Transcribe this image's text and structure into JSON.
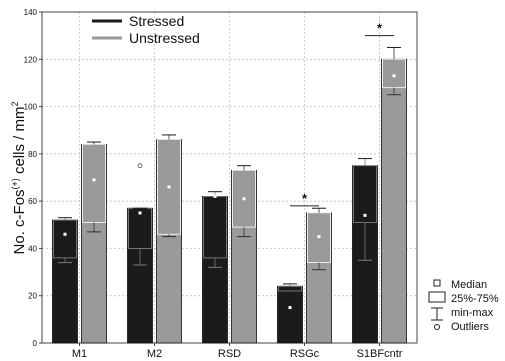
{
  "chart_data": {
    "type": "bar",
    "title": "",
    "xlabel": "",
    "ylabel": "No. c-Fos",
    "ylabel_sup": "(+)",
    "ylabel_tail": " cells / mm",
    "ylabel_unit_sup": "2",
    "ylim": [
      0,
      140
    ],
    "yticks": [
      0,
      20,
      40,
      60,
      80,
      100,
      120,
      140
    ],
    "grid": true,
    "legend_position": "top-left",
    "categories": [
      "M1",
      "M2",
      "RSD",
      "RSGc",
      "S1BFcntr"
    ],
    "series": [
      {
        "name": "Stressed",
        "color": "#1b1b1b",
        "values": [
          52,
          57,
          62,
          24,
          75
        ],
        "median": [
          46,
          55,
          62,
          15,
          54
        ],
        "q1": [
          36,
          40,
          36,
          22,
          51
        ],
        "q3": [
          52,
          57,
          62,
          24,
          75
        ],
        "min": [
          34,
          33,
          32,
          22,
          35
        ],
        "max": [
          53,
          57,
          64,
          25,
          78
        ],
        "outliers": [
          [],
          [
            75
          ],
          [],
          [],
          []
        ]
      },
      {
        "name": "Unstressed",
        "color": "#9a9a9a",
        "values": [
          84,
          86,
          73,
          55,
          120
        ],
        "median": [
          69,
          66,
          61,
          45,
          113
        ],
        "q1": [
          51,
          46,
          49,
          34,
          108
        ],
        "q3": [
          84,
          86,
          73,
          55,
          120
        ],
        "min": [
          47,
          45,
          45,
          31,
          105
        ],
        "max": [
          85,
          88,
          75,
          57,
          125
        ],
        "outliers": [
          [],
          [],
          [],
          [],
          []
        ]
      }
    ],
    "significance": [
      {
        "category": "RSGc",
        "label": "*",
        "y": 58
      },
      {
        "category": "S1BFcntr",
        "label": "*",
        "y": 130
      }
    ],
    "box_legend": [
      "Median",
      "25%-75%",
      "min-max",
      "Outliers"
    ]
  }
}
